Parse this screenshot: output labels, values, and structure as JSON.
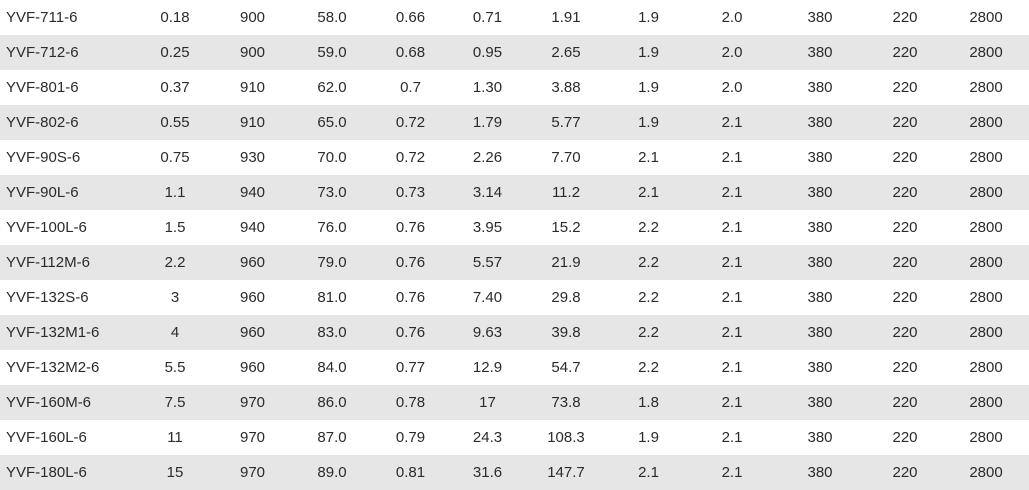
{
  "table": {
    "rows": [
      [
        "YVF-711-6",
        "0.18",
        "900",
        "58.0",
        "0.66",
        "0.71",
        "1.91",
        "1.9",
        "2.0",
        "380",
        "220",
        "2800"
      ],
      [
        "YVF-712-6",
        "0.25",
        "900",
        "59.0",
        "0.68",
        "0.95",
        "2.65",
        "1.9",
        "2.0",
        "380",
        "220",
        "2800"
      ],
      [
        "YVF-801-6",
        "0.37",
        "910",
        "62.0",
        "0.7",
        "1.30",
        "3.88",
        "1.9",
        "2.0",
        "380",
        "220",
        "2800"
      ],
      [
        "YVF-802-6",
        "0.55",
        "910",
        "65.0",
        "0.72",
        "1.79",
        "5.77",
        "1.9",
        "2.1",
        "380",
        "220",
        "2800"
      ],
      [
        "YVF-90S-6",
        "0.75",
        "930",
        "70.0",
        "0.72",
        "2.26",
        "7.70",
        "2.1",
        "2.1",
        "380",
        "220",
        "2800"
      ],
      [
        "YVF-90L-6",
        "1.1",
        "940",
        "73.0",
        "0.73",
        "3.14",
        "11.2",
        "2.1",
        "2.1",
        "380",
        "220",
        "2800"
      ],
      [
        "YVF-100L-6",
        "1.5",
        "940",
        "76.0",
        "0.76",
        "3.95",
        "15.2",
        "2.2",
        "2.1",
        "380",
        "220",
        "2800"
      ],
      [
        "YVF-112M-6",
        "2.2",
        "960",
        "79.0",
        "0.76",
        "5.57",
        "21.9",
        "2.2",
        "2.1",
        "380",
        "220",
        "2800"
      ],
      [
        "YVF-132S-6",
        "3",
        "960",
        "81.0",
        "0.76",
        "7.40",
        "29.8",
        "2.2",
        "2.1",
        "380",
        "220",
        "2800"
      ],
      [
        "YVF-132M1-6",
        "4",
        "960",
        "83.0",
        "0.76",
        "9.63",
        "39.8",
        "2.2",
        "2.1",
        "380",
        "220",
        "2800"
      ],
      [
        "YVF-132M2-6",
        "5.5",
        "960",
        "84.0",
        "0.77",
        "12.9",
        "54.7",
        "2.2",
        "2.1",
        "380",
        "220",
        "2800"
      ],
      [
        "YVF-160M-6",
        "7.5",
        "970",
        "86.0",
        "0.78",
        "17",
        "73.8",
        "1.8",
        "2.1",
        "380",
        "220",
        "2800"
      ],
      [
        "YVF-160L-6",
        "11",
        "970",
        "87.0",
        "0.79",
        "24.3",
        "108.3",
        "1.9",
        "2.1",
        "380",
        "220",
        "2800"
      ],
      [
        "YVF-180L-6",
        "15",
        "970",
        "89.0",
        "0.81",
        "31.6",
        "147.7",
        "2.1",
        "2.1",
        "380",
        "220",
        "2800"
      ]
    ],
    "stripe_color": "#e6e6e6",
    "text_color": "#2b2b2b"
  }
}
